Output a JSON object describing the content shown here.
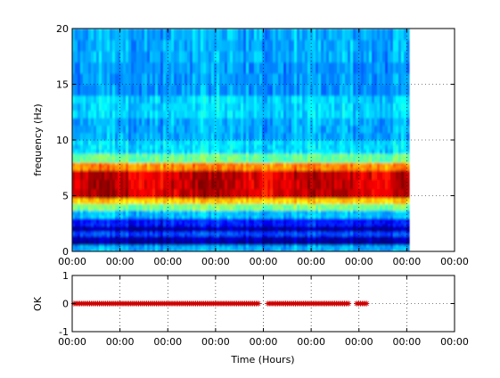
{
  "chart_data": [
    {
      "type": "heatmap",
      "title": "",
      "xlabel": "",
      "ylabel": "frequency (Hz)",
      "ylim": [
        0,
        20
      ],
      "yticks": [
        0,
        5,
        10,
        15,
        20
      ],
      "xticks": [
        "00:00",
        "00:00",
        "00:00",
        "00:00",
        "00:00",
        "00:00",
        "00:00",
        "00:00",
        "00:00"
      ],
      "data_extent_fraction": 0.875,
      "grid": "dotted",
      "colormap": "jet",
      "bands": [
        {
          "from_hz": 0,
          "to_hz": 0.6,
          "level": 0.3
        },
        {
          "from_hz": 0.6,
          "to_hz": 1.0,
          "level": 0.02
        },
        {
          "from_hz": 1.0,
          "to_hz": 1.4,
          "level": 0.06
        },
        {
          "from_hz": 1.4,
          "to_hz": 1.8,
          "level": 0.2
        },
        {
          "from_hz": 1.8,
          "to_hz": 2.3,
          "level": 0.05
        },
        {
          "from_hz": 2.3,
          "to_hz": 3.0,
          "level": 0.15
        },
        {
          "from_hz": 3.0,
          "to_hz": 3.7,
          "level": 0.32
        },
        {
          "from_hz": 3.7,
          "to_hz": 4.3,
          "level": 0.5
        },
        {
          "from_hz": 4.3,
          "to_hz": 4.8,
          "level": 0.68
        },
        {
          "from_hz": 4.8,
          "to_hz": 7.3,
          "level": 0.93
        },
        {
          "from_hz": 7.3,
          "to_hz": 8.0,
          "level": 0.75
        },
        {
          "from_hz": 8.0,
          "to_hz": 8.8,
          "level": 0.48
        },
        {
          "from_hz": 8.8,
          "to_hz": 10.0,
          "level": 0.35
        },
        {
          "from_hz": 10.0,
          "to_hz": 12.0,
          "level": 0.3
        },
        {
          "from_hz": 12.0,
          "to_hz": 14.0,
          "level": 0.34
        },
        {
          "from_hz": 14.0,
          "to_hz": 17.0,
          "level": 0.28
        },
        {
          "from_hz": 17.0,
          "to_hz": 20.0,
          "level": 0.3
        }
      ]
    },
    {
      "type": "scatter",
      "title": "",
      "xlabel": "Time (Hours)",
      "ylabel": "OK",
      "ylim": [
        -1,
        1
      ],
      "yticks": [
        -1,
        0,
        1
      ],
      "xticks": [
        "00:00",
        "00:00",
        "00:00",
        "00:00",
        "00:00",
        "00:00",
        "00:00",
        "00:00",
        "00:00"
      ],
      "marker": "*",
      "marker_color": "#cc0000",
      "value": 0,
      "segments": [
        {
          "from_fraction": 0.0,
          "to_fraction": 0.56
        },
        {
          "from_fraction": 0.58,
          "to_fraction": 0.83
        },
        {
          "from_fraction": 0.845,
          "to_fraction": 0.885
        }
      ]
    }
  ]
}
